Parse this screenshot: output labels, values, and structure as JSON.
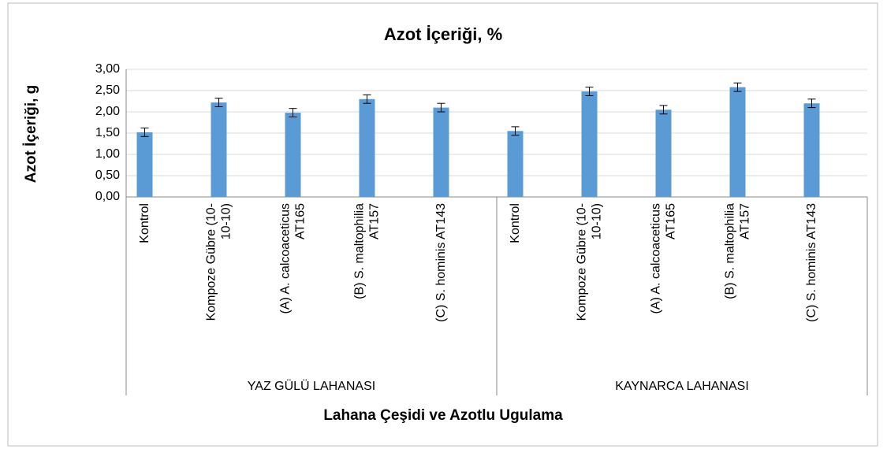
{
  "chart_data": {
    "type": "bar",
    "title": "Azot İçeriği, %",
    "y_label": "Azot İçeriği, g",
    "x_label": "Lahana Çeşidi ve Azotlu Ugulama",
    "groups": [
      "YAZ GÜLÜ LAHANASI",
      "KAYNARCA LAHANASI"
    ],
    "categories": [
      "Kontrol",
      "Kompoze Gübre (10-10-10)",
      "(A) A. calcoaceticus AT165",
      "(B) S. maltophilia AT157",
      "(C) S. hominis AT143",
      "Kontrol",
      "Kompoze Gübre (10-10-10)",
      "(A) A. calcoaceticus AT165",
      "(B) S. maltophilia AT157",
      "(C) S. hominis AT143"
    ],
    "values": [
      1.52,
      2.22,
      1.98,
      2.3,
      2.1,
      1.55,
      2.48,
      2.05,
      2.58,
      2.2
    ],
    "errors": [
      0.1,
      0.1,
      0.1,
      0.1,
      0.1,
      0.1,
      0.1,
      0.1,
      0.1,
      0.1
    ],
    "color": "#5b9bd5",
    "ylim": [
      0,
      3
    ],
    "yticks": [
      {
        "value": 0,
        "label": "0,00"
      },
      {
        "value": 0.5,
        "label": "0,50"
      },
      {
        "value": 1,
        "label": "1,00"
      },
      {
        "value": 1.5,
        "label": "1,50"
      },
      {
        "value": 2,
        "label": "2,00"
      },
      {
        "value": 2.5,
        "label": "2,50"
      },
      {
        "value": 3,
        "label": "3,00"
      }
    ],
    "grid": true
  }
}
